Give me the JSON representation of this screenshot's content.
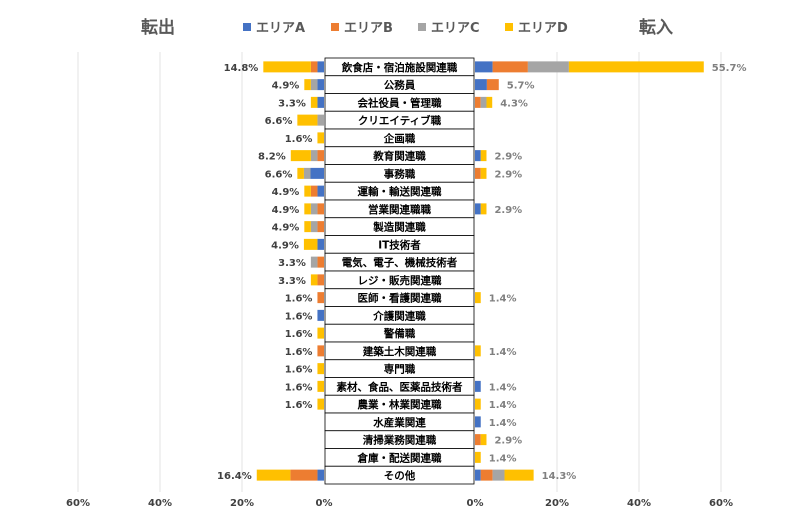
{
  "chart_data": {
    "type": "bar",
    "orientation": "horizontal-butterfly",
    "left_title": "転出",
    "right_title": "転入",
    "series": [
      {
        "name": "エリアA",
        "color": "#4472C4"
      },
      {
        "name": "エリアB",
        "color": "#ED7D31"
      },
      {
        "name": "エリアC",
        "color": "#A5A5A5"
      },
      {
        "name": "エリアD",
        "color": "#FFC000"
      }
    ],
    "left_ticks": [
      "60%",
      "40%",
      "20%",
      "0%"
    ],
    "right_ticks": [
      "0%",
      "20%",
      "40%",
      "60%"
    ],
    "xlim": [
      0,
      60
    ],
    "categories": [
      {
        "name": "飲食店・宿泊施設関連職",
        "out": [
          1.6,
          1.6,
          0,
          11.6
        ],
        "out_label": "14.8%",
        "in": [
          4.3,
          8.6,
          10.0,
          32.9
        ],
        "in_label": "55.7%"
      },
      {
        "name": "公務員",
        "out": [
          1.6,
          0,
          1.6,
          1.6
        ],
        "out_label": "4.9%",
        "in": [
          2.9,
          2.9,
          0,
          0
        ],
        "in_label": "5.7%"
      },
      {
        "name": "会社役員・管理職",
        "out": [
          1.6,
          0,
          0,
          1.6
        ],
        "out_label": "3.3%",
        "in": [
          0,
          1.4,
          1.4,
          1.4
        ],
        "in_label": "4.3%"
      },
      {
        "name": "クリエイティブ職",
        "out": [
          0,
          0,
          1.6,
          4.9
        ],
        "out_label": "6.6%",
        "in": [
          0,
          0,
          0,
          0
        ],
        "in_label": ""
      },
      {
        "name": "企画職",
        "out": [
          0,
          0,
          0,
          1.6
        ],
        "out_label": "1.6%",
        "in": [
          0,
          0,
          0,
          0
        ],
        "in_label": ""
      },
      {
        "name": "教育関連職",
        "out": [
          0,
          1.6,
          1.6,
          4.9
        ],
        "out_label": "8.2%",
        "in": [
          1.4,
          0,
          0,
          1.4
        ],
        "in_label": "2.9%"
      },
      {
        "name": "事務職",
        "out": [
          3.3,
          0,
          1.6,
          1.6
        ],
        "out_label": "6.6%",
        "in": [
          0,
          1.4,
          0,
          1.4
        ],
        "in_label": "2.9%"
      },
      {
        "name": "運輸・輸送関連職",
        "out": [
          1.6,
          1.6,
          0,
          1.6
        ],
        "out_label": "4.9%",
        "in": [
          0,
          0,
          0,
          0
        ],
        "in_label": ""
      },
      {
        "name": "営業関連職職",
        "out": [
          0,
          1.6,
          1.6,
          1.6
        ],
        "out_label": "4.9%",
        "in": [
          1.4,
          0,
          0,
          1.4
        ],
        "in_label": "2.9%"
      },
      {
        "name": "製造関連職",
        "out": [
          0,
          1.6,
          1.6,
          1.6
        ],
        "out_label": "4.9%",
        "in": [
          0,
          0,
          0,
          0
        ],
        "in_label": ""
      },
      {
        "name": "IT技術者",
        "out": [
          1.6,
          0,
          0,
          3.3
        ],
        "out_label": "4.9%",
        "in": [
          0,
          0,
          0,
          0
        ],
        "in_label": ""
      },
      {
        "name": "電気、電子、機械技術者",
        "out": [
          0,
          1.6,
          1.6,
          0
        ],
        "out_label": "3.3%",
        "in": [
          0,
          0,
          0,
          0
        ],
        "in_label": ""
      },
      {
        "name": "レジ・販売関連職",
        "out": [
          0,
          1.6,
          0,
          1.6
        ],
        "out_label": "3.3%",
        "in": [
          0,
          0,
          0,
          0
        ],
        "in_label": ""
      },
      {
        "name": "医師・看護関連職",
        "out": [
          0,
          1.6,
          0,
          0
        ],
        "out_label": "1.6%",
        "in": [
          0,
          0,
          0,
          1.4
        ],
        "in_label": "1.4%"
      },
      {
        "name": "介護関連職",
        "out": [
          1.6,
          0,
          0,
          0
        ],
        "out_label": "1.6%",
        "in": [
          0,
          0,
          0,
          0
        ],
        "in_label": ""
      },
      {
        "name": "警備職",
        "out": [
          0,
          0,
          0,
          1.6
        ],
        "out_label": "1.6%",
        "in": [
          0,
          0,
          0,
          0
        ],
        "in_label": ""
      },
      {
        "name": "建築土木関連職",
        "out": [
          0,
          1.6,
          0,
          0
        ],
        "out_label": "1.6%",
        "in": [
          0,
          0,
          0,
          1.4
        ],
        "in_label": "1.4%"
      },
      {
        "name": "専門職",
        "out": [
          0,
          0,
          0,
          1.6
        ],
        "out_label": "1.6%",
        "in": [
          0,
          0,
          0,
          0
        ],
        "in_label": ""
      },
      {
        "name": "素材、食品、医薬品技術者",
        "out": [
          0,
          0,
          0,
          1.6
        ],
        "out_label": "1.6%",
        "in": [
          1.4,
          0,
          0,
          0
        ],
        "in_label": "1.4%"
      },
      {
        "name": "農業・林業関連職",
        "out": [
          0,
          0,
          0,
          1.6
        ],
        "out_label": "1.6%",
        "in": [
          0,
          0,
          0,
          1.4
        ],
        "in_label": "1.4%"
      },
      {
        "name": "水産業関連",
        "out": [
          0,
          0,
          0,
          0
        ],
        "out_label": "",
        "in": [
          1.4,
          0,
          0,
          0
        ],
        "in_label": "1.4%"
      },
      {
        "name": "清掃業務関連職",
        "out": [
          0,
          0,
          0,
          0
        ],
        "out_label": "",
        "in": [
          0,
          1.4,
          0,
          1.4
        ],
        "in_label": "2.9%"
      },
      {
        "name": "倉庫・配送関連職",
        "out": [
          0,
          0,
          0,
          0
        ],
        "out_label": "",
        "in": [
          0,
          0,
          0,
          1.4
        ],
        "in_label": "1.4%"
      },
      {
        "name": "その他",
        "out": [
          1.6,
          6.6,
          0,
          8.2
        ],
        "out_label": "16.4%",
        "in": [
          1.4,
          2.9,
          2.9,
          7.1
        ],
        "in_label": "14.3%"
      }
    ]
  }
}
